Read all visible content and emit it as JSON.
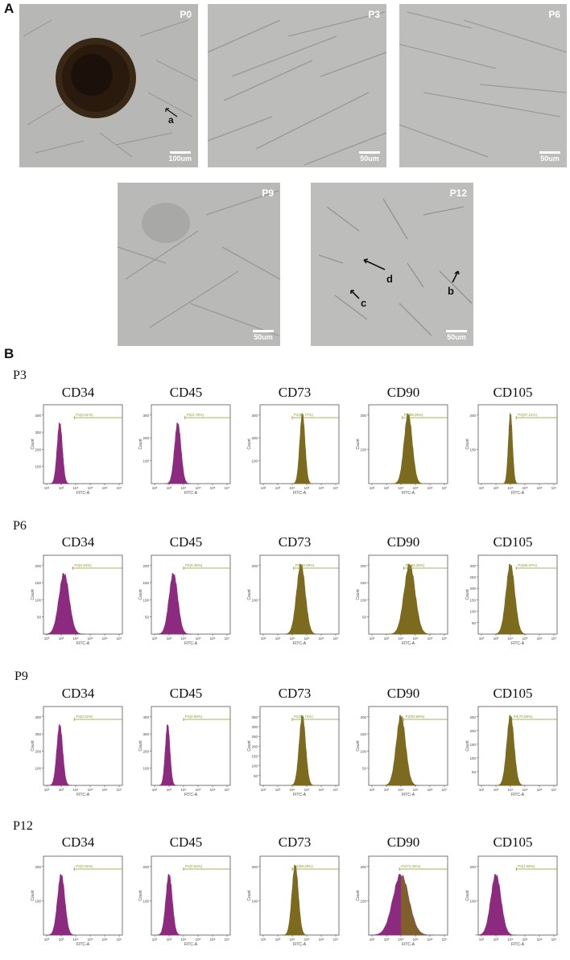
{
  "panel_a": {
    "letter": "A",
    "images": [
      {
        "passage": "P0",
        "scale": "100um",
        "annotations": [
          "a"
        ]
      },
      {
        "passage": "P3",
        "scale": "50um",
        "annotations": []
      },
      {
        "passage": "P6",
        "scale": "50um",
        "annotations": []
      },
      {
        "passage": "P9",
        "scale": "50um",
        "annotations": []
      },
      {
        "passage": "P12",
        "scale": "50um",
        "annotations": [
          "d",
          "c",
          "b"
        ]
      }
    ]
  },
  "panel_b": {
    "letter": "B",
    "rows": [
      {
        "passage": "P3",
        "markers": [
          "CD34",
          "CD45",
          "CD73",
          "CD90",
          "CD105"
        ]
      },
      {
        "passage": "P6",
        "markers": [
          "CD34",
          "CD45",
          "CD73",
          "CD90",
          "CD105"
        ]
      },
      {
        "passage": "P9",
        "markers": [
          "CD34",
          "CD45",
          "CD73",
          "CD90",
          "CD105"
        ]
      },
      {
        "passage": "P12",
        "markers": [
          "CD34",
          "CD45",
          "CD73",
          "CD90",
          "CD105"
        ]
      }
    ]
  },
  "colors": {
    "negative_fill": "#8b2a7e",
    "positive_fill": "#7c6a1e",
    "gate": "#8a9a2a"
  },
  "chart_data": [
    {
      "type": "histogram",
      "passage": "P3",
      "marker": "CD34",
      "gate": "P2(0.01%)",
      "positive": false,
      "xlabel": "FITC-A",
      "ylabel": "Count",
      "yticks": [
        100,
        200,
        300,
        400
      ],
      "xticks": [
        "10²",
        "10³",
        "10⁴",
        "10⁵",
        "10⁶",
        "10⁷"
      ]
    },
    {
      "type": "histogram",
      "passage": "P3",
      "marker": "CD45",
      "gate": "P2(0.79%)",
      "positive": false,
      "xlabel": "FITC-A",
      "ylabel": "Count",
      "yticks": [
        100,
        200,
        300
      ],
      "xticks": [
        "10²",
        "10³",
        "10⁴",
        "10⁵",
        "10⁶",
        "10⁷"
      ]
    },
    {
      "type": "histogram",
      "passage": "P3",
      "marker": "CD73",
      "gate": "P2(99.77%)",
      "positive": true,
      "xlabel": "FITC-A",
      "ylabel": "Count",
      "yticks": [
        100,
        200,
        300
      ],
      "xticks": [
        "10²",
        "10³",
        "10⁴",
        "10⁵",
        "10⁶",
        "10⁷"
      ]
    },
    {
      "type": "histogram",
      "passage": "P3",
      "marker": "CD90",
      "gate": "P2(99.35%)",
      "positive": true,
      "xlabel": "FITC-A",
      "ylabel": "Count",
      "yticks": [
        100,
        200
      ],
      "xticks": [
        "10²",
        "10³",
        "10⁴",
        "10⁵",
        "10⁶",
        "10⁷"
      ]
    },
    {
      "type": "histogram",
      "passage": "P3",
      "marker": "CD105",
      "gate": "P2(97.21%)",
      "positive": true,
      "xlabel": "FITC-A",
      "ylabel": "Count",
      "yticks": [
        100,
        200
      ],
      "xticks": [
        "10²",
        "10³",
        "10⁴",
        "10⁵",
        "10⁶",
        "10⁷"
      ]
    },
    {
      "type": "histogram",
      "passage": "P6",
      "marker": "CD34",
      "gate": "P2(0.34%)",
      "positive": false,
      "xlabel": "FITC-A",
      "ylabel": "Count",
      "yticks": [
        50,
        100,
        150,
        200
      ],
      "xticks": [
        "10²",
        "10³",
        "10⁴",
        "10⁵",
        "10⁶",
        "10⁷"
      ]
    },
    {
      "type": "histogram",
      "passage": "P6",
      "marker": "CD45",
      "gate": "P2(0.45%)",
      "positive": false,
      "xlabel": "FITC-A",
      "ylabel": "Count",
      "yticks": [
        50,
        100,
        150,
        200
      ],
      "xticks": [
        "10²",
        "10³",
        "10⁴",
        "10⁵",
        "10⁶",
        "10⁷"
      ]
    },
    {
      "type": "histogram",
      "passage": "P6",
      "marker": "CD73",
      "gate": "P2(99.09%)",
      "positive": true,
      "xlabel": "FITC-A",
      "ylabel": "Count",
      "yticks": [
        100,
        200
      ],
      "xticks": [
        "10²",
        "10³",
        "10⁴",
        "10⁵",
        "10⁶",
        "10⁷"
      ]
    },
    {
      "type": "histogram",
      "passage": "P6",
      "marker": "CD90",
      "gate": "P2(93.36%)",
      "positive": true,
      "xlabel": "FITC-A",
      "ylabel": "Count",
      "yticks": [
        50,
        100,
        150,
        200
      ],
      "xticks": [
        "10²",
        "10³",
        "10⁴",
        "10⁵",
        "10⁶",
        "10⁷"
      ]
    },
    {
      "type": "histogram",
      "passage": "P6",
      "marker": "CD105",
      "gate": "P2(96.97%)",
      "positive": true,
      "xlabel": "FITC-A",
      "ylabel": "Count",
      "yticks": [
        50,
        100,
        150,
        200,
        250,
        300
      ],
      "xticks": [
        "10²",
        "10³",
        "10⁴",
        "10⁵",
        "10⁶",
        "10⁷"
      ]
    },
    {
      "type": "histogram",
      "passage": "P9",
      "marker": "CD34",
      "gate": "P2(0.02%)",
      "positive": false,
      "xlabel": "FITC-A",
      "ylabel": "Count",
      "yticks": [
        100,
        200,
        300,
        400
      ],
      "xticks": [
        "10²",
        "10³",
        "10⁴",
        "10⁵",
        "10⁶",
        "10⁷"
      ]
    },
    {
      "type": "histogram",
      "passage": "P9",
      "marker": "CD45",
      "gate": "P2(0.09%)",
      "positive": false,
      "xlabel": "FITC-A",
      "ylabel": "Count",
      "yticks": [
        100,
        200,
        300,
        400
      ],
      "xticks": [
        "10²",
        "10³",
        "10⁴",
        "10⁵",
        "10⁶",
        "10⁷"
      ]
    },
    {
      "type": "histogram",
      "passage": "P9",
      "marker": "CD73",
      "gate": "P2(99.72%)",
      "positive": true,
      "xlabel": "FITC-A",
      "ylabel": "Count",
      "yticks": [
        50,
        100,
        150,
        200,
        250,
        300,
        350
      ],
      "xticks": [
        "10²",
        "10³",
        "10⁴",
        "10⁵",
        "10⁶",
        "10⁷"
      ]
    },
    {
      "type": "histogram",
      "passage": "P9",
      "marker": "CD90",
      "gate": "P2(93.88%)",
      "positive": true,
      "xlabel": "FITC-A",
      "ylabel": "Count",
      "yticks": [
        50,
        100,
        150,
        200
      ],
      "xticks": [
        "10²",
        "10³",
        "10⁴",
        "10⁵",
        "10⁶",
        "10⁷"
      ]
    },
    {
      "type": "histogram",
      "passage": "P9",
      "marker": "CD105",
      "gate": "P2(70.88%)",
      "positive": true,
      "xlabel": "FITC-A",
      "ylabel": "Count",
      "yticks": [
        50,
        100,
        150,
        200,
        250
      ],
      "xticks": [
        "10²",
        "10³",
        "10⁴",
        "10⁵",
        "10⁶",
        "10⁷"
      ]
    },
    {
      "type": "histogram",
      "passage": "P12",
      "marker": "CD34",
      "gate": "P2(0.06%)",
      "positive": false,
      "xlabel": "FITC-A",
      "ylabel": "Count",
      "yticks": [
        100,
        200
      ],
      "xticks": [
        "10²",
        "10³",
        "10⁴",
        "10⁵",
        "10⁶",
        "10⁷"
      ]
    },
    {
      "type": "histogram",
      "passage": "P12",
      "marker": "CD45",
      "gate": "P2(0.02%)",
      "positive": false,
      "xlabel": "FITC-A",
      "ylabel": "Count",
      "yticks": [
        100,
        200
      ],
      "xticks": [
        "10²",
        "10³",
        "10⁴",
        "10⁵",
        "10⁶",
        "10⁷"
      ]
    },
    {
      "type": "histogram",
      "passage": "P12",
      "marker": "CD73",
      "gate": "P2(98.28%)",
      "positive": true,
      "xlabel": "FITC-A",
      "ylabel": "Count",
      "yticks": [
        100,
        200
      ],
      "xticks": [
        "10²",
        "10³",
        "10⁴",
        "10⁵",
        "10⁶",
        "10⁷"
      ]
    },
    {
      "type": "histogram",
      "passage": "P12",
      "marker": "CD90",
      "gate": "P2(71.04%)",
      "positive": "mixed",
      "xlabel": "FITC-A",
      "ylabel": "Count",
      "yticks": [
        100,
        200
      ],
      "xticks": [
        "10²",
        "10³",
        "10⁴",
        "10⁵",
        "10⁶",
        "10⁷"
      ]
    },
    {
      "type": "histogram",
      "passage": "P12",
      "marker": "CD105",
      "gate": "P2(1.95%)",
      "positive": false,
      "xlabel": "FITC-A",
      "ylabel": "Count",
      "yticks": [
        100,
        200
      ],
      "xticks": [
        "10²",
        "10³",
        "10⁴",
        "10⁵",
        "10⁶",
        "10⁷"
      ]
    }
  ]
}
